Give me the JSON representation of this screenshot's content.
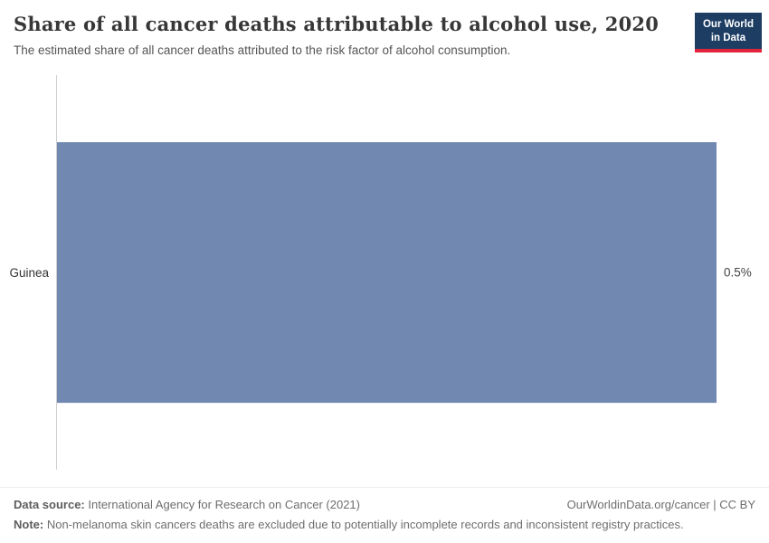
{
  "header": {
    "title": "Share of all cancer deaths attributable to alcohol use, 2020",
    "subtitle": "The estimated share of all cancer deaths attributed to the risk factor of alcohol consumption.",
    "logo": {
      "line1": "Our World",
      "line2": "in Data"
    }
  },
  "chart_data": {
    "type": "bar",
    "orientation": "horizontal",
    "title": "Share of all cancer deaths attributable to alcohol use, 2020",
    "subtitle": "The estimated share of all cancer deaths attributed to the risk factor of alcohol consumption.",
    "categories": [
      "Guinea"
    ],
    "values": [
      0.5
    ],
    "value_labels": [
      "0.5%"
    ],
    "xlabel": "",
    "ylabel": "",
    "xlim": [
      0,
      0.5
    ],
    "grid": false,
    "legend_position": "none",
    "bar_color": "#7189b0"
  },
  "footer": {
    "data_source_label": "Data source:",
    "data_source": " International Agency for Research on Cancer (2021)",
    "citation": "OurWorldinData.org/cancer | CC BY",
    "note_label": "Note:",
    "note": " Non-melanoma skin cancers deaths are excluded due to potentially incomplete records and inconsistent registry practices."
  },
  "colors": {
    "bar": "#7189b0",
    "logo_bg": "#1d3d63",
    "logo_accent": "#e0243c",
    "axis": "#cfcfcf"
  }
}
